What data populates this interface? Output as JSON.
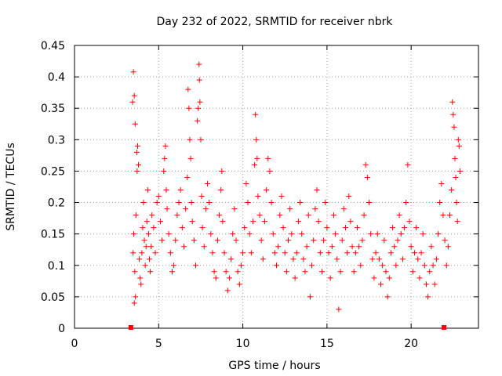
{
  "chart_data": {
    "type": "scatter",
    "title": "Day 232 of 2022, SRMTID for receiver nbrk",
    "xlabel": "GPS time / hours",
    "ylabel": "SRMTID / TECUs",
    "xlim": [
      0,
      24
    ],
    "ylim": [
      0,
      0.45
    ],
    "xticks": [
      0,
      5,
      10,
      15,
      20
    ],
    "xtick_labels": [
      "0",
      "5",
      "10",
      "15",
      "20"
    ],
    "yticks": [
      0,
      0.05,
      0.1,
      0.15,
      0.2,
      0.25,
      0.3,
      0.35,
      0.4,
      0.45
    ],
    "ytick_labels": [
      "0",
      "0.05",
      "0.1",
      "0.15",
      "0.2",
      "0.25",
      "0.3",
      "0.35",
      "0.4",
      "0.45"
    ],
    "grid": true,
    "marker": "+",
    "color": "#ff0000",
    "zero_markers": [
      {
        "x": 3.35,
        "y": 0
      },
      {
        "x": 21.95,
        "y": 0
      }
    ],
    "series": [
      {
        "name": "SRMTID",
        "points": [
          [
            3.5,
            0.408
          ],
          [
            3.55,
            0.37
          ],
          [
            3.6,
            0.325
          ],
          [
            3.45,
            0.36
          ],
          [
            3.52,
            0.15
          ],
          [
            3.48,
            0.12
          ],
          [
            3.58,
            0.09
          ],
          [
            3.62,
            0.05
          ],
          [
            3.55,
            0.04
          ],
          [
            3.7,
            0.28
          ],
          [
            3.75,
            0.29
          ],
          [
            3.8,
            0.26
          ],
          [
            3.72,
            0.25
          ],
          [
            3.65,
            0.18
          ],
          [
            3.85,
            0.11
          ],
          [
            3.9,
            0.08
          ],
          [
            3.95,
            0.07
          ],
          [
            4.0,
            0.12
          ],
          [
            4.05,
            0.16
          ],
          [
            4.1,
            0.2
          ],
          [
            4.15,
            0.14
          ],
          [
            4.2,
            0.1
          ],
          [
            4.25,
            0.13
          ],
          [
            4.3,
            0.17
          ],
          [
            4.35,
            0.22
          ],
          [
            4.4,
            0.15
          ],
          [
            4.45,
            0.11
          ],
          [
            4.5,
            0.09
          ],
          [
            4.55,
            0.13
          ],
          [
            4.6,
            0.18
          ],
          [
            4.7,
            0.16
          ],
          [
            4.8,
            0.12
          ],
          [
            4.9,
            0.2
          ],
          [
            5.0,
            0.21
          ],
          [
            5.1,
            0.17
          ],
          [
            5.2,
            0.14
          ],
          [
            5.3,
            0.25
          ],
          [
            5.35,
            0.27
          ],
          [
            5.4,
            0.29
          ],
          [
            5.45,
            0.22
          ],
          [
            5.5,
            0.19
          ],
          [
            5.6,
            0.15
          ],
          [
            5.7,
            0.12
          ],
          [
            5.8,
            0.09
          ],
          [
            5.9,
            0.1
          ],
          [
            6.0,
            0.14
          ],
          [
            6.1,
            0.18
          ],
          [
            6.2,
            0.2
          ],
          [
            6.3,
            0.22
          ],
          [
            6.4,
            0.16
          ],
          [
            6.5,
            0.13
          ],
          [
            6.6,
            0.19
          ],
          [
            6.7,
            0.24
          ],
          [
            6.75,
            0.38
          ],
          [
            6.8,
            0.35
          ],
          [
            6.85,
            0.3
          ],
          [
            6.9,
            0.27
          ],
          [
            6.95,
            0.2
          ],
          [
            7.0,
            0.17
          ],
          [
            7.1,
            0.14
          ],
          [
            7.2,
            0.1
          ],
          [
            7.3,
            0.33
          ],
          [
            7.35,
            0.35
          ],
          [
            7.4,
            0.42
          ],
          [
            7.42,
            0.395
          ],
          [
            7.45,
            0.36
          ],
          [
            7.5,
            0.3
          ],
          [
            7.55,
            0.21
          ],
          [
            7.6,
            0.16
          ],
          [
            7.7,
            0.13
          ],
          [
            7.8,
            0.19
          ],
          [
            7.9,
            0.23
          ],
          [
            8.0,
            0.2
          ],
          [
            8.1,
            0.15
          ],
          [
            8.2,
            0.12
          ],
          [
            8.3,
            0.09
          ],
          [
            8.4,
            0.08
          ],
          [
            8.5,
            0.14
          ],
          [
            8.6,
            0.18
          ],
          [
            8.7,
            0.22
          ],
          [
            8.75,
            0.25
          ],
          [
            8.8,
            0.17
          ],
          [
            8.9,
            0.12
          ],
          [
            9.0,
            0.09
          ],
          [
            9.1,
            0.06
          ],
          [
            9.2,
            0.08
          ],
          [
            9.3,
            0.11
          ],
          [
            9.4,
            0.15
          ],
          [
            9.5,
            0.19
          ],
          [
            9.6,
            0.14
          ],
          [
            9.7,
            0.09
          ],
          [
            9.8,
            0.07
          ],
          [
            9.9,
            0.1
          ],
          [
            10.0,
            0.12
          ],
          [
            10.1,
            0.16
          ],
          [
            10.2,
            0.23
          ],
          [
            10.3,
            0.2
          ],
          [
            10.4,
            0.15
          ],
          [
            10.5,
            0.12
          ],
          [
            10.6,
            0.17
          ],
          [
            10.7,
            0.26
          ],
          [
            10.75,
            0.34
          ],
          [
            10.8,
            0.3
          ],
          [
            10.85,
            0.27
          ],
          [
            10.9,
            0.21
          ],
          [
            11.0,
            0.18
          ],
          [
            11.1,
            0.14
          ],
          [
            11.2,
            0.11
          ],
          [
            11.3,
            0.17
          ],
          [
            11.4,
            0.22
          ],
          [
            11.5,
            0.27
          ],
          [
            11.6,
            0.25
          ],
          [
            11.7,
            0.2
          ],
          [
            11.8,
            0.15
          ],
          [
            11.9,
            0.12
          ],
          [
            12.0,
            0.1
          ],
          [
            12.1,
            0.13
          ],
          [
            12.2,
            0.18
          ],
          [
            12.3,
            0.21
          ],
          [
            12.4,
            0.16
          ],
          [
            12.5,
            0.12
          ],
          [
            12.6,
            0.09
          ],
          [
            12.7,
            0.14
          ],
          [
            12.8,
            0.19
          ],
          [
            12.9,
            0.15
          ],
          [
            13.0,
            0.11
          ],
          [
            13.1,
            0.08
          ],
          [
            13.2,
            0.12
          ],
          [
            13.3,
            0.17
          ],
          [
            13.4,
            0.2
          ],
          [
            13.5,
            0.15
          ],
          [
            13.6,
            0.11
          ],
          [
            13.7,
            0.09
          ],
          [
            13.8,
            0.13
          ],
          [
            13.9,
            0.18
          ],
          [
            14.0,
            0.05
          ],
          [
            14.1,
            0.1
          ],
          [
            14.2,
            0.14
          ],
          [
            14.3,
            0.19
          ],
          [
            14.4,
            0.22
          ],
          [
            14.5,
            0.17
          ],
          [
            14.6,
            0.12
          ],
          [
            14.7,
            0.09
          ],
          [
            14.8,
            0.14
          ],
          [
            14.9,
            0.2
          ],
          [
            15.0,
            0.16
          ],
          [
            15.1,
            0.12
          ],
          [
            15.2,
            0.08
          ],
          [
            15.3,
            0.13
          ],
          [
            15.4,
            0.18
          ],
          [
            15.5,
            0.15
          ],
          [
            15.6,
            0.11
          ],
          [
            15.7,
            0.03
          ],
          [
            15.8,
            0.09
          ],
          [
            15.9,
            0.14
          ],
          [
            16.0,
            0.19
          ],
          [
            16.1,
            0.16
          ],
          [
            16.2,
            0.12
          ],
          [
            16.3,
            0.21
          ],
          [
            16.4,
            0.17
          ],
          [
            16.5,
            0.13
          ],
          [
            16.6,
            0.09
          ],
          [
            16.7,
            0.12
          ],
          [
            16.8,
            0.16
          ],
          [
            16.9,
            0.13
          ],
          [
            17.0,
            0.1
          ],
          [
            17.1,
            0.14
          ],
          [
            17.2,
            0.18
          ],
          [
            17.3,
            0.26
          ],
          [
            17.4,
            0.24
          ],
          [
            17.5,
            0.2
          ],
          [
            17.6,
            0.15
          ],
          [
            17.7,
            0.11
          ],
          [
            17.8,
            0.08
          ],
          [
            17.9,
            0.12
          ],
          [
            18.0,
            0.15
          ],
          [
            18.1,
            0.11
          ],
          [
            18.2,
            0.07
          ],
          [
            18.3,
            0.1
          ],
          [
            18.4,
            0.14
          ],
          [
            18.5,
            0.09
          ],
          [
            18.6,
            0.05
          ],
          [
            18.7,
            0.08
          ],
          [
            18.8,
            0.12
          ],
          [
            18.9,
            0.16
          ],
          [
            19.0,
            0.13
          ],
          [
            19.1,
            0.1
          ],
          [
            19.2,
            0.14
          ],
          [
            19.3,
            0.18
          ],
          [
            19.4,
            0.15
          ],
          [
            19.5,
            0.11
          ],
          [
            19.6,
            0.16
          ],
          [
            19.7,
            0.2
          ],
          [
            19.8,
            0.26
          ],
          [
            19.9,
            0.17
          ],
          [
            20.0,
            0.13
          ],
          [
            20.1,
            0.09
          ],
          [
            20.2,
            0.12
          ],
          [
            20.3,
            0.16
          ],
          [
            20.4,
            0.11
          ],
          [
            20.5,
            0.08
          ],
          [
            20.6,
            0.12
          ],
          [
            20.7,
            0.15
          ],
          [
            20.8,
            0.1
          ],
          [
            20.9,
            0.07
          ],
          [
            21.0,
            0.05
          ],
          [
            21.1,
            0.09
          ],
          [
            21.2,
            0.13
          ],
          [
            21.3,
            0.1
          ],
          [
            21.4,
            0.07
          ],
          [
            21.5,
            0.11
          ],
          [
            21.6,
            0.15
          ],
          [
            21.7,
            0.2
          ],
          [
            21.8,
            0.23
          ],
          [
            21.9,
            0.18
          ],
          [
            22.0,
            0.14
          ],
          [
            22.1,
            0.1
          ],
          [
            22.2,
            0.13
          ],
          [
            22.3,
            0.18
          ],
          [
            22.4,
            0.22
          ],
          [
            22.45,
            0.36
          ],
          [
            22.5,
            0.34
          ],
          [
            22.55,
            0.32
          ],
          [
            22.6,
            0.27
          ],
          [
            22.65,
            0.24
          ],
          [
            22.7,
            0.2
          ],
          [
            22.75,
            0.17
          ],
          [
            22.8,
            0.3
          ],
          [
            22.85,
            0.29
          ],
          [
            22.9,
            0.25
          ]
        ]
      }
    ]
  }
}
